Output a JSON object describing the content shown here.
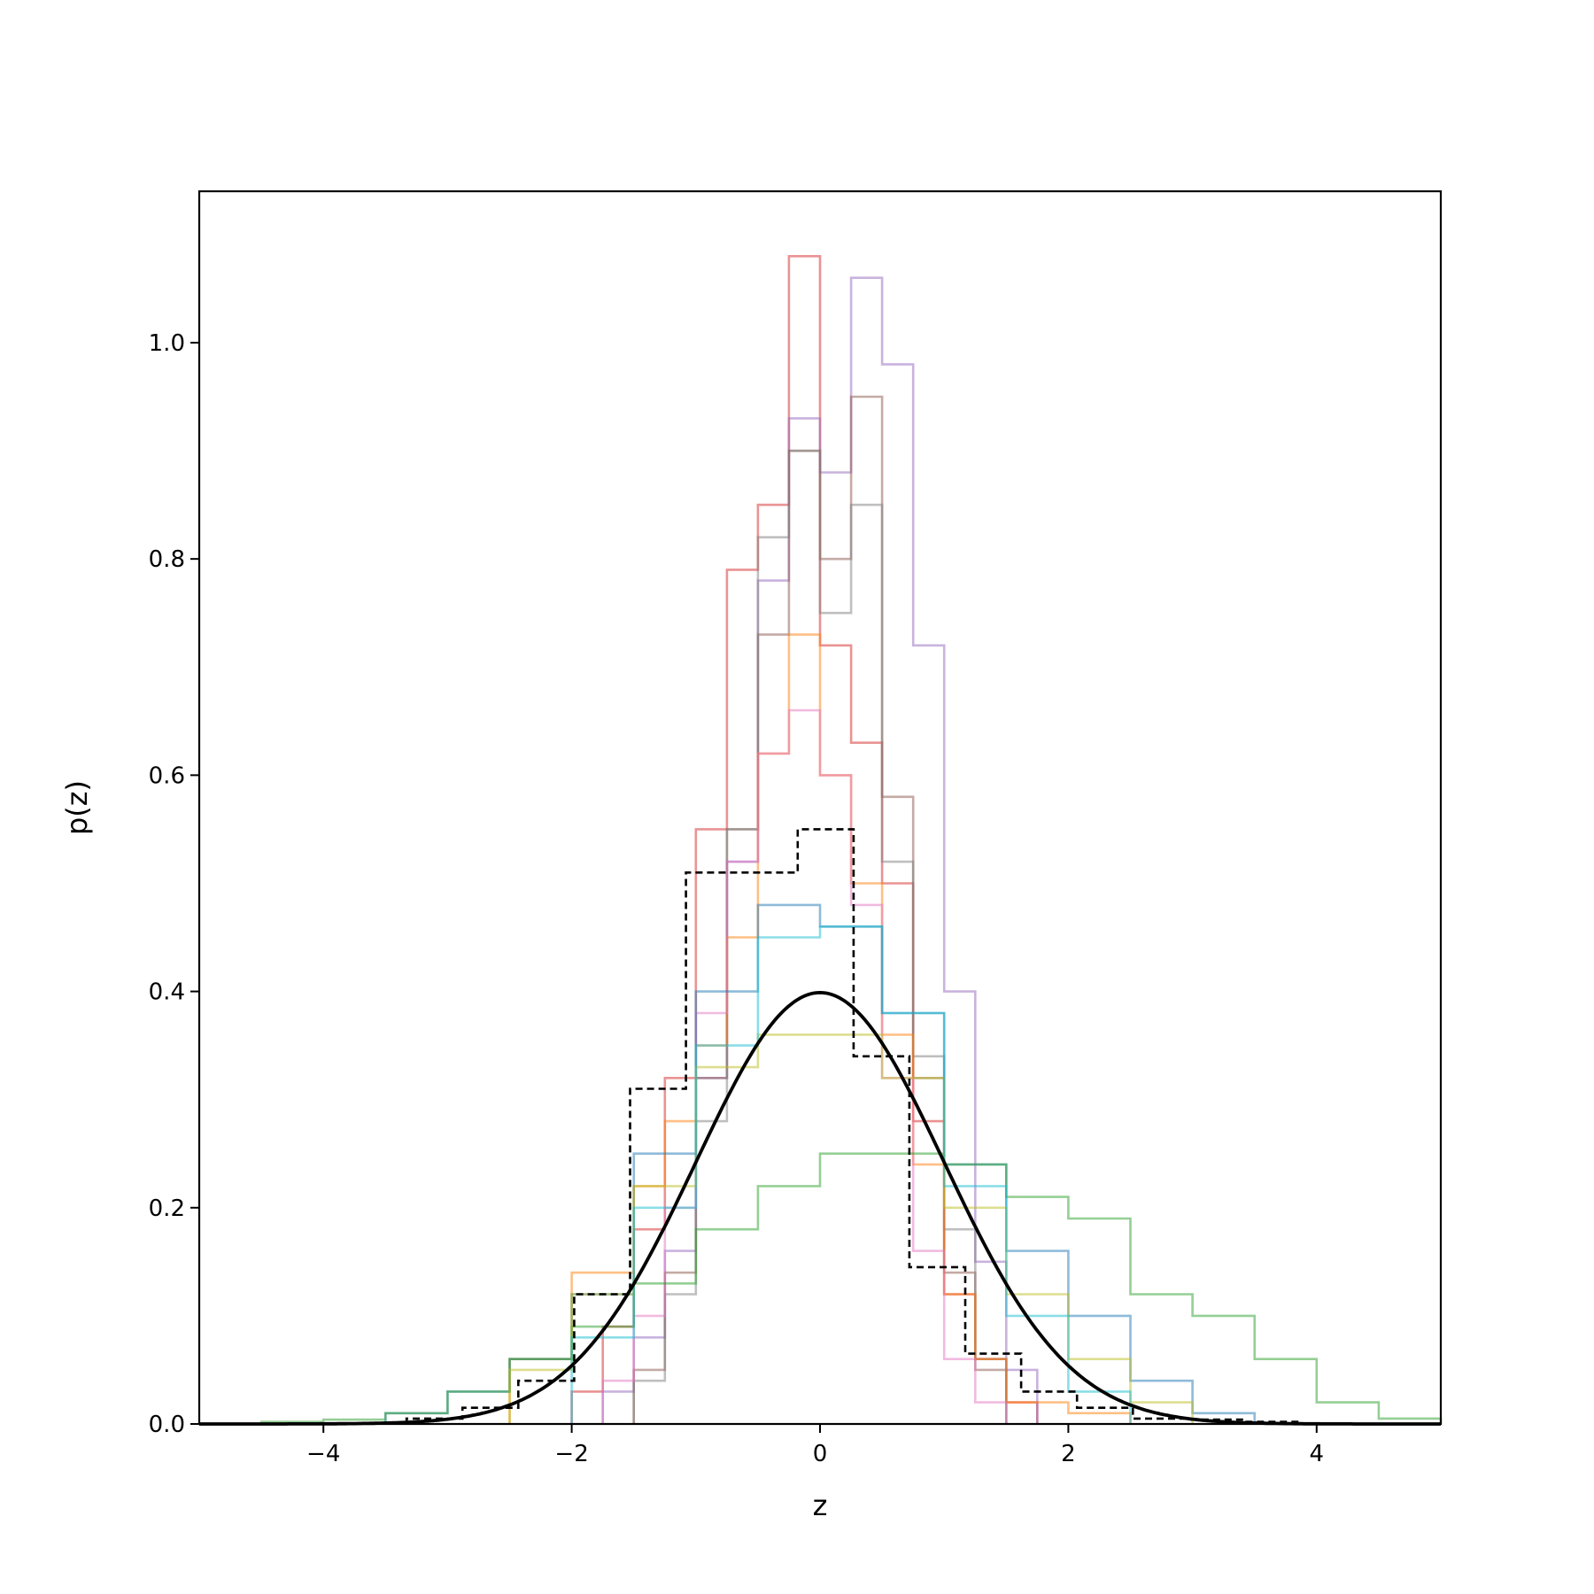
{
  "chart_data": {
    "type": "line",
    "title": "",
    "xlabel": "z",
    "ylabel": "p(z)",
    "xlim": [
      -5,
      5
    ],
    "ylim": [
      0,
      1.14
    ],
    "grid": false,
    "legend": "none",
    "x_ticks": [
      -4,
      -2,
      0,
      2,
      4
    ],
    "x_tick_labels": [
      "−4",
      "−2",
      "0",
      "2",
      "4"
    ],
    "y_ticks": [
      0.0,
      0.2,
      0.4,
      0.6,
      0.8,
      1.0
    ],
    "y_tick_labels": [
      "0.0",
      "0.2",
      "0.4",
      "0.6",
      "0.8",
      "1.0"
    ],
    "histograms": [
      {
        "color": "#d62728",
        "edges": [
          -2.0,
          -1.75,
          -1.5,
          -1.25,
          -1.0,
          -0.75,
          -0.5,
          -0.25,
          0.0,
          0.25,
          0.5,
          0.75,
          1.0,
          1.25,
          1.5,
          1.75
        ],
        "values": [
          0.03,
          0.09,
          0.18,
          0.32,
          0.55,
          0.79,
          0.85,
          1.08,
          0.72,
          0.63,
          0.5,
          0.28,
          0.12,
          0.06,
          0.02
        ]
      },
      {
        "color": "#9467bd",
        "edges": [
          -1.75,
          -1.5,
          -1.25,
          -1.0,
          -0.75,
          -0.5,
          -0.25,
          0.0,
          0.25,
          0.5,
          0.75,
          1.0,
          1.25,
          1.5,
          1.75
        ],
        "values": [
          0.03,
          0.08,
          0.16,
          0.32,
          0.52,
          0.78,
          0.93,
          0.88,
          1.06,
          0.98,
          0.72,
          0.4,
          0.15,
          0.05
        ]
      },
      {
        "color": "#8c564b",
        "edges": [
          -1.5,
          -1.25,
          -1.0,
          -0.75,
          -0.5,
          -0.25,
          0.0,
          0.25,
          0.5,
          0.75,
          1.0,
          1.25,
          1.5
        ],
        "values": [
          0.05,
          0.14,
          0.32,
          0.55,
          0.73,
          0.9,
          0.8,
          0.95,
          0.58,
          0.32,
          0.14,
          0.05
        ]
      },
      {
        "color": "#7f7f7f",
        "edges": [
          -1.5,
          -1.25,
          -1.0,
          -0.75,
          -0.5,
          -0.25,
          0.0,
          0.25,
          0.5,
          0.75,
          1.0,
          1.25,
          1.5
        ],
        "values": [
          0.04,
          0.12,
          0.28,
          0.55,
          0.82,
          0.9,
          0.75,
          0.85,
          0.52,
          0.34,
          0.18,
          0.06
        ]
      },
      {
        "color": "#ff7f0e",
        "edges": [
          -2.5,
          -2.0,
          -1.5,
          -1.25,
          -1.0,
          -0.75,
          -0.5,
          -0.25,
          0.0,
          0.25,
          0.5,
          0.75,
          1.0,
          1.25,
          1.5,
          2.0,
          2.5
        ],
        "values": [
          0.06,
          0.14,
          0.22,
          0.28,
          0.35,
          0.45,
          0.62,
          0.73,
          0.6,
          0.5,
          0.36,
          0.24,
          0.12,
          0.06,
          0.02,
          0.01
        ]
      },
      {
        "color": "#e377c2",
        "edges": [
          -1.75,
          -1.5,
          -1.25,
          -1.0,
          -0.75,
          -0.5,
          -0.25,
          0.0,
          0.25,
          0.5,
          0.75,
          1.0,
          1.25,
          1.5
        ],
        "values": [
          0.04,
          0.1,
          0.2,
          0.38,
          0.52,
          0.62,
          0.66,
          0.6,
          0.48,
          0.32,
          0.16,
          0.06,
          0.02
        ]
      },
      {
        "color": "#1f77b4",
        "edges": [
          -3.5,
          -3.0,
          -2.5,
          -2.0,
          -1.5,
          -1.0,
          -0.5,
          0.0,
          0.5,
          1.0,
          1.5,
          2.0,
          2.5,
          3.0,
          3.5
        ],
        "values": [
          0.01,
          0.03,
          0.06,
          0.12,
          0.25,
          0.4,
          0.48,
          0.46,
          0.38,
          0.24,
          0.16,
          0.1,
          0.04,
          0.01
        ]
      },
      {
        "color": "#2ca02c",
        "edges": [
          -4.5,
          -4.0,
          -3.5,
          -3.0,
          -2.5,
          -2.0,
          -1.5,
          -1.0,
          -0.5,
          0.0,
          0.5,
          1.0,
          1.5,
          2.0,
          2.5,
          3.0,
          3.5,
          4.0,
          4.5,
          5.0
        ],
        "values": [
          0.002,
          0.004,
          0.01,
          0.03,
          0.06,
          0.09,
          0.13,
          0.18,
          0.22,
          0.25,
          0.25,
          0.24,
          0.21,
          0.19,
          0.12,
          0.1,
          0.06,
          0.02,
          0.005
        ]
      },
      {
        "color": "#bcbd22",
        "edges": [
          -2.5,
          -2.0,
          -1.5,
          -1.0,
          -0.5,
          0.0,
          0.5,
          1.0,
          1.5,
          2.0,
          2.5,
          3.0
        ],
        "values": [
          0.05,
          0.12,
          0.22,
          0.33,
          0.36,
          0.36,
          0.32,
          0.2,
          0.12,
          0.06,
          0.02
        ]
      },
      {
        "color": "#17becf",
        "edges": [
          -2.0,
          -1.5,
          -1.0,
          -0.5,
          0.0,
          0.5,
          1.0,
          1.5,
          2.0,
          2.5
        ],
        "values": [
          0.08,
          0.2,
          0.35,
          0.45,
          0.46,
          0.38,
          0.22,
          0.1,
          0.03
        ]
      }
    ],
    "dashed_histogram": {
      "color": "#000000",
      "edges": [
        -3.33,
        -2.88,
        -2.43,
        -1.98,
        -1.53,
        -1.08,
        -0.63,
        -0.18,
        0.27,
        0.72,
        1.17,
        1.62,
        2.07,
        2.52,
        2.97,
        3.42,
        3.87
      ],
      "values": [
        0.005,
        0.015,
        0.04,
        0.12,
        0.31,
        0.51,
        0.51,
        0.55,
        0.34,
        0.145,
        0.065,
        0.03,
        0.015,
        0.005,
        0.004,
        0.002
      ]
    },
    "curve": {
      "color": "#000000",
      "mean": 0,
      "std": 1,
      "label": ""
    }
  }
}
